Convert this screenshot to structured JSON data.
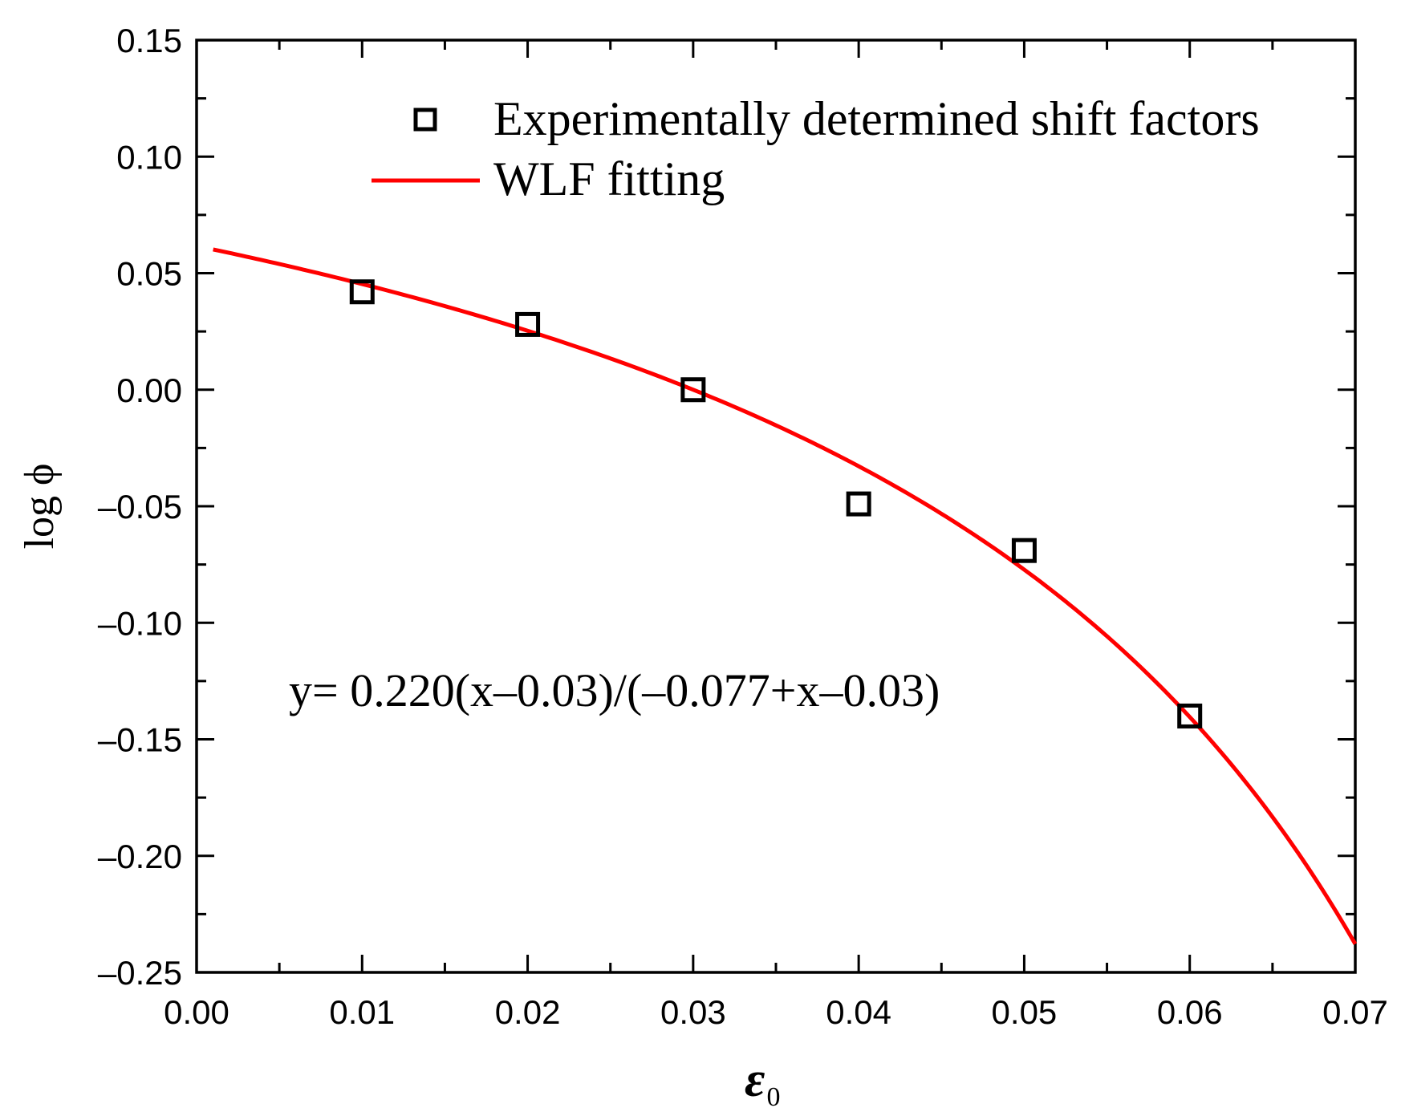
{
  "chart_data": {
    "type": "scatter",
    "title": "",
    "xlabel": "ε",
    "xlabel_subscript": "0",
    "ylabel": "log ϕ",
    "xlim": [
      0.0,
      0.07
    ],
    "ylim": [
      -0.25,
      0.15
    ],
    "x_ticks": [
      "0.00",
      "0.01",
      "0.02",
      "0.03",
      "0.04",
      "0.05",
      "0.06",
      "0.07"
    ],
    "y_ticks": [
      "0.15",
      "0.10",
      "0.05",
      "0.00",
      "–0.05",
      "–0.10",
      "–0.15",
      "–0.20",
      "–0.25"
    ],
    "grid": false,
    "legend_position": "top-right",
    "series": [
      {
        "name": "Experimentally determined shift factors",
        "kind": "scatter",
        "marker": "open-square",
        "color": "#000000",
        "x": [
          0.01,
          0.02,
          0.03,
          0.04,
          0.05,
          0.06
        ],
        "y": [
          0.042,
          0.028,
          0.0,
          -0.049,
          -0.069,
          -0.14
        ]
      },
      {
        "name": "WLF fitting",
        "kind": "line",
        "color": "#ff0000",
        "formula": {
          "c1": 0.22,
          "c2": -0.077,
          "ref": 0.03
        },
        "x_range": [
          0.001,
          0.07
        ]
      }
    ],
    "annotation": "y= 0.220(x–0.03)/(–0.077+x–0.03)"
  }
}
